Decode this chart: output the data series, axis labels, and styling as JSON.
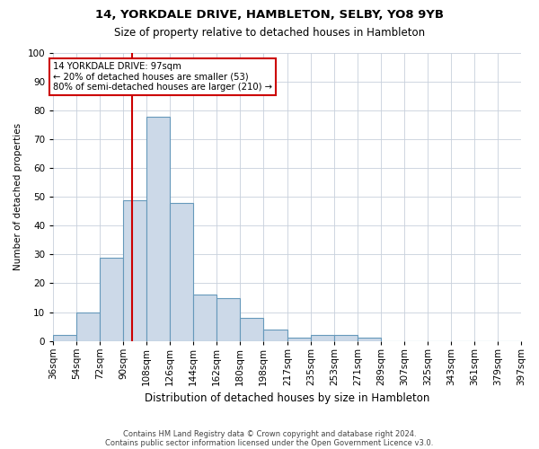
{
  "title1": "14, YORKDALE DRIVE, HAMBLETON, SELBY, YO8 9YB",
  "title2": "Size of property relative to detached houses in Hambleton",
  "xlabel": "Distribution of detached houses by size in Hambleton",
  "ylabel": "Number of detached properties",
  "bar_color": "#ccd9e8",
  "bar_edge_color": "#6699bb",
  "vline_x": 97,
  "vline_color": "#cc0000",
  "bin_lefts": [
    36,
    54,
    72,
    90,
    108,
    126,
    144,
    162,
    180,
    198,
    217,
    235,
    253,
    271,
    289,
    307,
    325,
    343,
    361,
    379
  ],
  "bin_rights": [
    54,
    72,
    90,
    108,
    126,
    144,
    162,
    180,
    198,
    217,
    235,
    253,
    271,
    289,
    307,
    325,
    343,
    361,
    379,
    397
  ],
  "categories": [
    "36sqm",
    "54sqm",
    "72sqm",
    "90sqm",
    "108sqm",
    "126sqm",
    "144sqm",
    "162sqm",
    "180sqm",
    "198sqm",
    "217sqm",
    "235sqm",
    "253sqm",
    "271sqm",
    "289sqm",
    "307sqm",
    "325sqm",
    "343sqm",
    "361sqm",
    "379sqm",
    "397sqm"
  ],
  "tick_positions": [
    36,
    54,
    72,
    90,
    108,
    126,
    144,
    162,
    180,
    198,
    217,
    235,
    253,
    271,
    289,
    307,
    325,
    343,
    361,
    379,
    397
  ],
  "values": [
    2,
    10,
    29,
    49,
    78,
    48,
    16,
    15,
    8,
    4,
    1,
    2,
    2,
    1,
    0,
    0,
    0,
    0,
    0,
    0
  ],
  "ylim": [
    0,
    100
  ],
  "xlim": [
    36,
    397
  ],
  "yticks": [
    0,
    10,
    20,
    30,
    40,
    50,
    60,
    70,
    80,
    90,
    100
  ],
  "annotation_text": "14 YORKDALE DRIVE: 97sqm\n← 20% of detached houses are smaller (53)\n80% of semi-detached houses are larger (210) →",
  "annotation_box_color": "#ffffff",
  "annotation_box_edge": "#cc0000",
  "footer1": "Contains HM Land Registry data © Crown copyright and database right 2024.",
  "footer2": "Contains public sector information licensed under the Open Government Licence v3.0.",
  "bg_color": "#ffffff",
  "grid_color": "#c8d0dc"
}
